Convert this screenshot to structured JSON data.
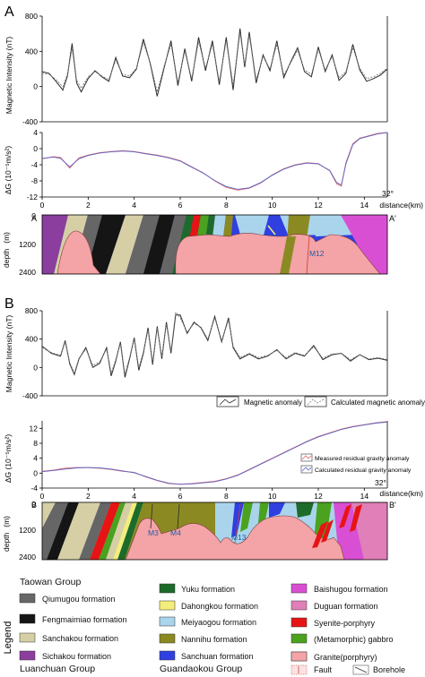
{
  "colors": {
    "qiumugou": "#666666",
    "fengmaimiao": "#151515",
    "sanchakou": "#d6cfa6",
    "sichakou": "#8b3e9e",
    "yuku": "#1d6b2a",
    "dahongkou": "#f3ee7a",
    "meiyaogou": "#a9d4ec",
    "nannihu": "#8b8a22",
    "sanchuan": "#2f3fe0",
    "baishugou": "#d94fd3",
    "duguan": "#e07fb8",
    "syenite": "#e61414",
    "gabbro": "#4aa21f",
    "granite": "#f4a3a6",
    "observed_line": "#2a2a2a",
    "calculated_line": "#777777",
    "measured_gravity": "#e06a6a",
    "calculated_gravity": "#5b66c8"
  },
  "section_a": {
    "letter": "A",
    "start_label": "A",
    "end_label": "A'",
    "strike": "32°",
    "fault_labels": [
      "M12"
    ]
  },
  "section_b": {
    "letter": "B",
    "start_label": "B",
    "end_label": "B'",
    "strike": "32°",
    "fault_labels": [
      "M3",
      "M4",
      "M13"
    ]
  },
  "depth_axis": {
    "label": "depth",
    "unit": "(m)",
    "ticks": [
      "0",
      "1200",
      "2400"
    ]
  },
  "magnetic_legend": {
    "observed": "Magnetic anomaly",
    "calculated": "Calculated magnetic anomaly"
  },
  "gravity_legend": {
    "measured": "Measured residual gravity anomaly",
    "calculated": "Calculated residual gravity anomaly"
  },
  "legend": {
    "title": "Legend",
    "taowan_group": "Taowan Group",
    "luanchuan_group": "Luanchuan Group",
    "guandaokou_group": "Guandaokou Group",
    "items": {
      "qiumugou": "Qiumugou formation",
      "fengmaimiao": "Fengmaimiao formation",
      "sanchakou": "Sanchakou formation",
      "sichakou": "Sichakou formation",
      "yuku": "Yuku formation",
      "dahongkou": "Dahongkou formation",
      "meiyaogou": "Meiyaogou formation",
      "nannihu": "Nannihu formation",
      "sanchuan": "Sanchuan formation",
      "baishugou": "Baishugou formation",
      "duguan": "Duguan formation",
      "syenite": "Syenite-porphyry",
      "gabbro": "(Metamorphic) gabbro",
      "granite": "Granite(porphyry)",
      "fault": "Fault",
      "borehole": "Borehole"
    }
  },
  "chart_data": [
    {
      "type": "line",
      "panel": "A",
      "ylabel": "Magnetic Intensity (nT)",
      "xlim": [
        0,
        15
      ],
      "ylim": [
        -400,
        800
      ],
      "yticks": [
        -400,
        0,
        400,
        800
      ],
      "ytick_labels": [
        "-400",
        "0",
        "400",
        "800"
      ],
      "series": [
        {
          "x": [
            0,
            0.3,
            0.6,
            0.9,
            1.1,
            1.3,
            1.5,
            1.7,
            2.0,
            2.3,
            2.6,
            2.9,
            3.2,
            3.5,
            3.8,
            4.1,
            4.4,
            4.7,
            5.0,
            5.3,
            5.6,
            5.9,
            6.2,
            6.5,
            6.8,
            7.1,
            7.4,
            7.7,
            8.0,
            8.3,
            8.6,
            8.8,
            9.0,
            9.3,
            9.6,
            9.9,
            10.2,
            10.5,
            10.8,
            11.1,
            11.4,
            11.7,
            12.0,
            12.3,
            12.6,
            12.9,
            13.2,
            13.5,
            13.8,
            14.1,
            14.4,
            14.7,
            15.0
          ],
          "values": [
            170,
            150,
            60,
            -40,
            120,
            490,
            40,
            -60,
            90,
            180,
            110,
            60,
            330,
            120,
            100,
            200,
            540,
            260,
            -110,
            210,
            520,
            10,
            430,
            60,
            560,
            180,
            520,
            20,
            560,
            -40,
            660,
            220,
            620,
            40,
            360,
            180,
            520,
            100,
            280,
            440,
            170,
            110,
            450,
            170,
            360,
            70,
            150,
            480,
            190,
            60,
            90,
            130,
            200
          ]
        },
        {
          "x": [
            0,
            0.3,
            0.6,
            0.9,
            1.1,
            1.3,
            1.5,
            1.7,
            2.0,
            2.3,
            2.6,
            2.9,
            3.2,
            3.5,
            3.8,
            4.1,
            4.4,
            4.7,
            5.0,
            5.3,
            5.6,
            5.9,
            6.2,
            6.5,
            6.8,
            7.1,
            7.4,
            7.7,
            8.0,
            8.3,
            8.6,
            8.8,
            9.0,
            9.3,
            9.6,
            9.9,
            10.2,
            10.5,
            10.8,
            11.1,
            11.4,
            11.7,
            12.0,
            12.3,
            12.6,
            12.9,
            13.2,
            13.5,
            13.8,
            14.1,
            14.4,
            14.7,
            15.0
          ],
          "values": [
            150,
            140,
            80,
            0,
            140,
            430,
            70,
            -20,
            110,
            170,
            120,
            80,
            300,
            140,
            120,
            210,
            500,
            270,
            -60,
            230,
            480,
            50,
            400,
            90,
            510,
            210,
            480,
            60,
            520,
            20,
            610,
            250,
            580,
            80,
            340,
            200,
            480,
            130,
            270,
            410,
            190,
            140,
            420,
            190,
            340,
            100,
            170,
            440,
            210,
            90,
            110,
            150,
            210
          ]
        }
      ]
    },
    {
      "type": "line",
      "panel": "A",
      "ylabel": "ΔG (10⁻⁵m/s²)",
      "xlabel": "distance(km)",
      "xlim": [
        0,
        15
      ],
      "ylim": [
        -12,
        4
      ],
      "yticks": [
        -12,
        -8,
        -4,
        0,
        4
      ],
      "ytick_labels": [
        "-12",
        "-8",
        "-4",
        "0",
        "4"
      ],
      "xticks": [
        0,
        2,
        4,
        6,
        8,
        10,
        12,
        14
      ],
      "xtick_labels": [
        "0",
        "2",
        "4",
        "6",
        "8",
        "10",
        "12",
        "14"
      ],
      "series": [
        {
          "x": [
            0,
            0.5,
            0.8,
            1.2,
            1.6,
            2.0,
            2.5,
            3.0,
            3.5,
            4.0,
            4.5,
            5.0,
            5.5,
            6.0,
            6.5,
            7.0,
            7.5,
            8.0,
            8.5,
            9.0,
            9.5,
            10.0,
            10.5,
            11.0,
            11.5,
            12.0,
            12.5,
            12.8,
            13.0,
            13.2,
            13.5,
            13.8,
            14.2,
            14.6,
            15.0
          ],
          "values": [
            -2.5,
            -2.0,
            -2.2,
            -4.8,
            -2.3,
            -1.6,
            -1.0,
            -0.7,
            -0.5,
            -0.7,
            -1.2,
            -1.6,
            -2.2,
            -3.0,
            -4.5,
            -6.0,
            -8.0,
            -9.6,
            -10.3,
            -9.8,
            -8.5,
            -6.5,
            -5.0,
            -4.0,
            -3.5,
            -3.7,
            -5.5,
            -8.7,
            -9.3,
            -3.5,
            1.2,
            2.6,
            3.2,
            3.8,
            4.0
          ]
        },
        {
          "x": [
            0,
            0.5,
            0.8,
            1.2,
            1.6,
            2.0,
            2.5,
            3.0,
            3.5,
            4.0,
            4.5,
            5.0,
            5.5,
            6.0,
            6.5,
            7.0,
            7.5,
            8.0,
            8.5,
            9.0,
            9.5,
            10.0,
            10.5,
            11.0,
            11.5,
            12.0,
            12.5,
            12.8,
            13.0,
            13.2,
            13.5,
            13.8,
            14.2,
            14.6,
            15.0
          ],
          "values": [
            -2.4,
            -2.1,
            -2.4,
            -4.5,
            -2.5,
            -1.7,
            -1.1,
            -0.8,
            -0.6,
            -0.8,
            -1.3,
            -1.7,
            -2.3,
            -3.1,
            -4.6,
            -6.1,
            -7.9,
            -9.4,
            -10.1,
            -9.7,
            -8.4,
            -6.6,
            -5.1,
            -4.1,
            -3.6,
            -3.8,
            -5.4,
            -8.4,
            -9.0,
            -3.8,
            1.0,
            2.5,
            3.1,
            3.7,
            4.0
          ]
        }
      ]
    },
    {
      "type": "line",
      "panel": "B",
      "ylabel": "Magnetic Intensity (nT)",
      "xlim": [
        0,
        15
      ],
      "ylim": [
        -400,
        800
      ],
      "yticks": [
        -400,
        0,
        400,
        800
      ],
      "ytick_labels": [
        "-400",
        "0",
        "400",
        "800"
      ],
      "series": [
        {
          "x": [
            0,
            0.4,
            0.8,
            1.0,
            1.2,
            1.4,
            1.6,
            1.9,
            2.2,
            2.5,
            2.8,
            3.0,
            3.2,
            3.4,
            3.6,
            3.8,
            4.0,
            4.2,
            4.4,
            4.6,
            4.8,
            5.0,
            5.2,
            5.4,
            5.6,
            5.8,
            6.0,
            6.3,
            6.6,
            6.9,
            7.2,
            7.5,
            7.8,
            8.1,
            8.3,
            8.6,
            9.0,
            9.4,
            9.8,
            10.2,
            10.6,
            11.0,
            11.4,
            11.8,
            12.2,
            12.6,
            13.0,
            13.4,
            13.8,
            14.2,
            14.6,
            15.0
          ],
          "values": [
            300,
            200,
            160,
            380,
            50,
            -100,
            120,
            280,
            0,
            60,
            280,
            -120,
            90,
            360,
            -140,
            120,
            420,
            -40,
            200,
            560,
            40,
            580,
            120,
            640,
            200,
            740,
            740,
            480,
            640,
            560,
            380,
            720,
            360,
            700,
            280,
            120,
            190,
            120,
            160,
            250,
            120,
            200,
            160,
            310,
            110,
            180,
            200,
            90,
            180,
            110,
            130,
            100
          ]
        },
        {
          "x": [
            0,
            0.4,
            0.8,
            1.0,
            1.2,
            1.4,
            1.6,
            1.9,
            2.2,
            2.5,
            2.8,
            3.0,
            3.2,
            3.4,
            3.6,
            3.8,
            4.0,
            4.2,
            4.4,
            4.6,
            4.8,
            5.0,
            5.2,
            5.4,
            5.6,
            5.8,
            6.0,
            6.3,
            6.6,
            6.9,
            7.2,
            7.5,
            7.8,
            8.1,
            8.3,
            8.6,
            9.0,
            9.4,
            9.8,
            10.2,
            10.6,
            11.0,
            11.4,
            11.8,
            12.2,
            12.6,
            13.0,
            13.4,
            13.8,
            14.2,
            14.6,
            15.0
          ],
          "values": [
            280,
            210,
            170,
            360,
            70,
            -80,
            130,
            260,
            30,
            80,
            260,
            -80,
            110,
            340,
            -100,
            140,
            400,
            0,
            220,
            530,
            70,
            560,
            150,
            610,
            230,
            780,
            700,
            500,
            620,
            570,
            400,
            700,
            380,
            670,
            300,
            140,
            200,
            140,
            170,
            240,
            140,
            210,
            170,
            290,
            130,
            190,
            200,
            110,
            180,
            120,
            140,
            110
          ]
        }
      ]
    },
    {
      "type": "line",
      "panel": "B",
      "ylabel": "ΔG (10⁻⁵m/s²)",
      "xlabel": "distance(km)",
      "xlim": [
        0,
        15
      ],
      "ylim": [
        -4,
        14
      ],
      "yticks": [
        -4,
        0,
        4,
        8,
        12
      ],
      "ytick_labels": [
        "-4",
        "0",
        "4",
        "8",
        "12"
      ],
      "xticks": [
        0,
        2,
        4,
        6,
        8,
        10,
        12,
        14
      ],
      "xtick_labels": [
        "0",
        "2",
        "4",
        "6",
        "8",
        "10",
        "12",
        "14"
      ],
      "series": [
        {
          "x": [
            0,
            0.5,
            1.0,
            1.5,
            2.0,
            2.5,
            3.0,
            3.5,
            4.0,
            4.5,
            5.0,
            5.5,
            6.0,
            6.5,
            7.0,
            7.5,
            8.0,
            8.5,
            9.0,
            9.5,
            10.0,
            10.5,
            11.0,
            11.5,
            12.0,
            12.5,
            13.0,
            13.5,
            14.0,
            14.5,
            15.0
          ],
          "values": [
            0.5,
            0.8,
            1.3,
            1.5,
            1.5,
            1.3,
            1.0,
            0.5,
            0.2,
            -1.0,
            -2.0,
            -2.8,
            -3.0,
            -2.8,
            -2.5,
            -2.2,
            -1.5,
            -0.5,
            1.0,
            2.5,
            4.0,
            5.5,
            7.0,
            8.5,
            9.8,
            10.8,
            11.8,
            12.5,
            13.0,
            13.5,
            13.8
          ]
        },
        {
          "x": [
            0,
            0.5,
            1.0,
            1.5,
            2.0,
            2.5,
            3.0,
            3.5,
            4.0,
            4.5,
            5.0,
            5.5,
            6.0,
            6.5,
            7.0,
            7.5,
            8.0,
            8.5,
            9.0,
            9.5,
            10.0,
            10.5,
            11.0,
            11.5,
            12.0,
            12.5,
            13.0,
            13.5,
            14.0,
            14.5,
            15.0
          ],
          "values": [
            0.4,
            0.7,
            1.1,
            1.4,
            1.5,
            1.4,
            1.1,
            0.6,
            0.1,
            -0.9,
            -1.9,
            -2.7,
            -3.0,
            -2.9,
            -2.6,
            -2.3,
            -1.6,
            -0.6,
            0.9,
            2.4,
            3.9,
            5.4,
            6.9,
            8.4,
            9.7,
            10.7,
            11.7,
            12.4,
            12.9,
            13.4,
            13.7
          ]
        }
      ]
    }
  ]
}
